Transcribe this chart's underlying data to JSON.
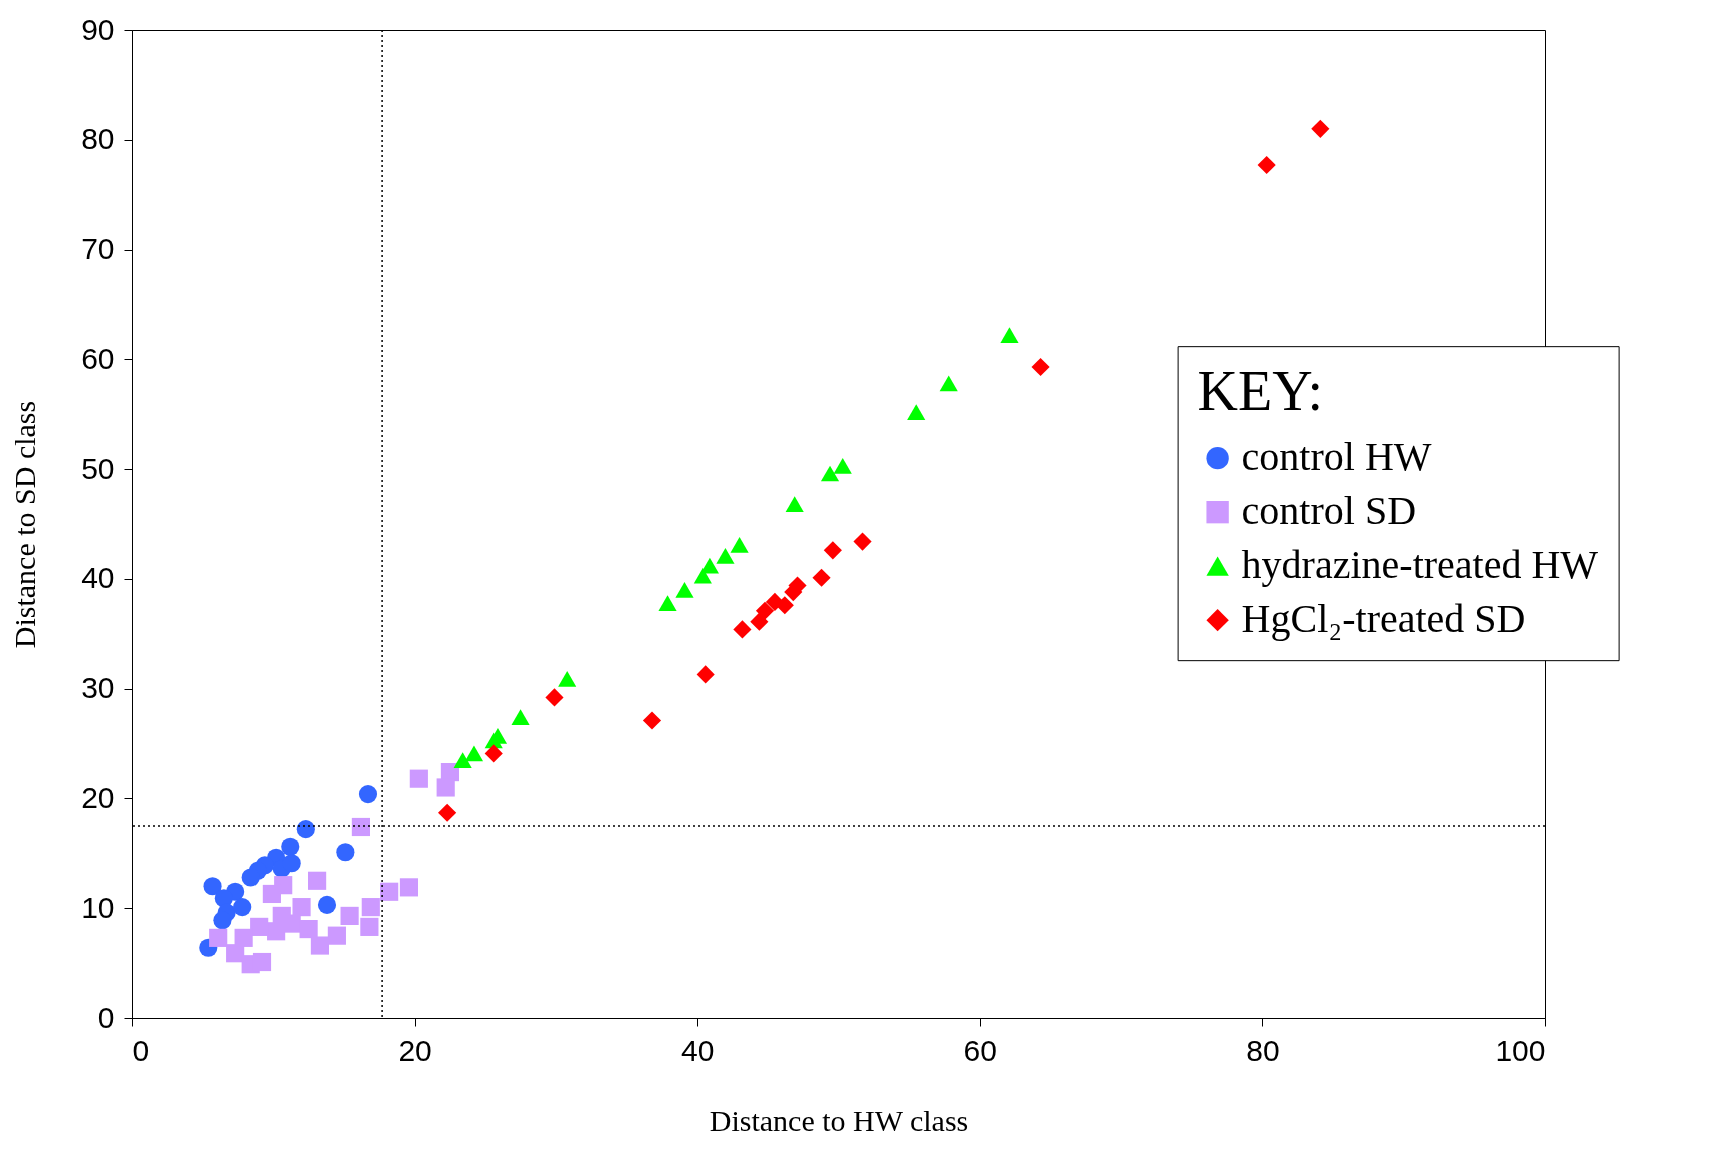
{
  "chart_data": {
    "type": "scatter",
    "xlabel": "Distance to HW class",
    "ylabel": "Distance to SD class",
    "legend_title": "KEY:",
    "legend": "right",
    "grid": false,
    "xlim": [
      0,
      100
    ],
    "xticks": [
      0,
      20,
      40,
      60,
      80,
      100
    ],
    "ylim": [
      0,
      90
    ],
    "yticks": [
      0,
      10,
      20,
      30,
      40,
      50,
      60,
      70,
      80,
      90
    ],
    "ref_lines": [
      {
        "axis": "x",
        "value": 17.7,
        "line_style": "dotted",
        "color": "#000000"
      },
      {
        "axis": "y",
        "value": 17.5,
        "line_style": "dotted",
        "color": "#000000"
      }
    ],
    "series": [
      {
        "name": "control HW",
        "color": "#3366ff",
        "marker": "circle",
        "x": [
          16.7,
          12.3,
          15.1,
          11.2,
          10.2,
          9.4,
          8.9,
          8.4,
          5.7,
          7.3,
          6.5,
          6.7,
          6.4,
          5.4,
          13.8,
          7.8,
          10.6,
          11.3
        ],
        "values": [
          20.4,
          17.2,
          15.1,
          15.6,
          14.6,
          13.9,
          13.4,
          12.8,
          12.0,
          11.5,
          10.9,
          9.6,
          8.9,
          6.4,
          10.3,
          10.1,
          13.6,
          14.1
        ]
      },
      {
        "name": "control SD",
        "color": "#cc99ff",
        "marker": "square",
        "x": [
          22.5,
          20.3,
          22.2,
          16.2,
          19.6,
          18.2,
          16.9,
          16.8,
          15.4,
          14.5,
          13.3,
          13.1,
          10.7,
          9.9,
          12.0,
          10.2,
          11.3,
          9.0,
          7.9,
          6.1,
          7.3,
          8.4,
          9.2,
          12.5,
          10.6
        ],
        "values": [
          22.4,
          21.8,
          21.0,
          17.4,
          11.9,
          11.5,
          10.1,
          8.3,
          9.3,
          7.5,
          6.6,
          12.5,
          12.1,
          11.3,
          10.1,
          7.9,
          8.6,
          8.3,
          7.3,
          7.3,
          5.9,
          4.9,
          5.1,
          8.1,
          9.3
        ]
      },
      {
        "name": "hydrazine-treated HW",
        "color": "#00ff00",
        "marker": "triangle",
        "x": [
          62.1,
          57.8,
          55.5,
          50.3,
          49.4,
          46.9,
          43.0,
          42.0,
          40.9,
          40.4,
          39.1,
          37.9,
          30.8,
          27.5,
          25.9,
          25.6,
          24.2,
          23.4
        ],
        "values": [
          62.2,
          57.8,
          55.2,
          50.3,
          49.6,
          46.8,
          43.1,
          42.1,
          41.2,
          40.3,
          39.0,
          37.8,
          30.9,
          27.4,
          25.7,
          25.3,
          24.1,
          23.5
        ]
      },
      {
        "name": "HgCl₂-treated SD",
        "color": "#ff0000",
        "marker": "diamond",
        "x": [
          84.1,
          80.3,
          64.3,
          51.7,
          49.6,
          48.8,
          47.1,
          46.8,
          46.2,
          45.5,
          44.8,
          44.4,
          43.2,
          40.6,
          36.8,
          29.9,
          25.6,
          22.3
        ],
        "values": [
          81.0,
          77.7,
          59.3,
          43.4,
          42.6,
          40.1,
          39.4,
          38.8,
          37.6,
          37.9,
          37.1,
          36.1,
          35.4,
          31.3,
          27.1,
          29.2,
          24.1,
          18.7
        ]
      }
    ]
  }
}
